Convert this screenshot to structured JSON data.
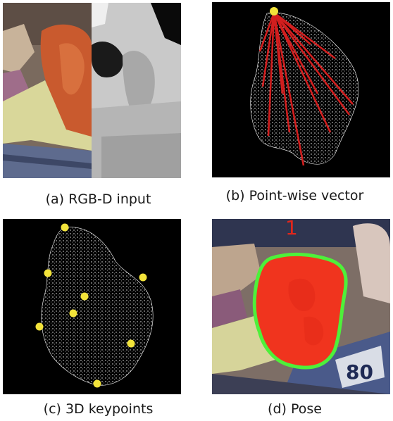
{
  "panels": [
    {
      "id": "a",
      "caption": "(a) RGB-D input"
    },
    {
      "id": "b",
      "caption": "(b) Point-wise vector"
    },
    {
      "id": "c",
      "caption": "(c) 3D keypoints"
    },
    {
      "id": "d",
      "caption": "(d) Pose",
      "label_number": "1"
    }
  ],
  "colors": {
    "keypoint": "#f2e33a",
    "vector": "#d21e1e",
    "mask_fill": "#f0341e",
    "mask_outline": "#4ef03a",
    "cloud_bg": "#000000"
  }
}
